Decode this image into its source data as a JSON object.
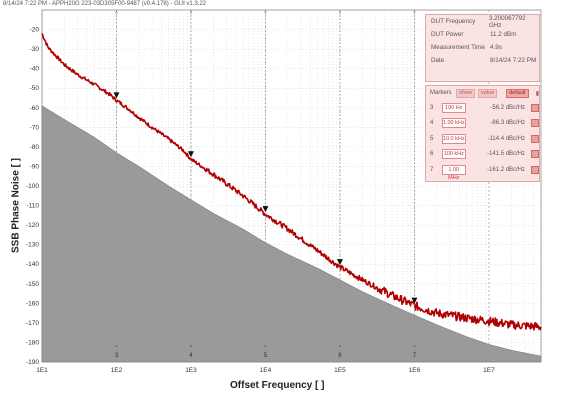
{
  "header": "8/14/24 7:22 PM - APPH20G 223-03D305F00-9487 (v0.4.178) - GUI v1.3.22",
  "info": [
    {
      "label": "DUT Frequency",
      "value": "3.200067792 GHz"
    },
    {
      "label": "DUT Power",
      "value": "11.2 dBm"
    },
    {
      "label": "Measurement Time",
      "value": "4.9s"
    },
    {
      "label": "Date",
      "value": "8/14/24 7:22 PM"
    }
  ],
  "markers_panel": {
    "title": "Markers",
    "show": "show",
    "value": "value",
    "default": "default",
    "rows": [
      {
        "id": "3",
        "freq": "100 Hz",
        "value": "-56.2 dBc/Hz"
      },
      {
        "id": "4",
        "freq": "1.00 kHz",
        "value": "-86.3 dBc/Hz"
      },
      {
        "id": "5",
        "freq": "10.0 kHz",
        "value": "-114.4 dBc/Hz"
      },
      {
        "id": "6",
        "freq": "100 kHz",
        "value": "-141.5 dBc/Hz"
      },
      {
        "id": "7",
        "freq": "1.00 MHz",
        "value": "-161.2 dBc/Hz"
      }
    ]
  },
  "chart_data": {
    "type": "line",
    "xlabel": "Offset Frequency [ ]",
    "ylabel": "SSB Phase Noise [ ]",
    "xscale": "log",
    "xlim": [
      10,
      50000000
    ],
    "ylim": [
      -190,
      -10
    ],
    "x_ticks": [
      "1E1",
      "1E2",
      "1E3",
      "1E4",
      "1E5",
      "1E6",
      "1E7"
    ],
    "y_ticks": [
      -20,
      -30,
      -40,
      -50,
      -60,
      -70,
      -80,
      -90,
      -100,
      -110,
      -120,
      -130,
      -140,
      -150,
      -160,
      -170,
      -180,
      -190
    ],
    "grid": true,
    "colors": {
      "measured": "#b00000",
      "floor": "#9a9a9a",
      "marker": "#111111"
    },
    "series": [
      {
        "kind": "measured",
        "x": [
          10,
          12,
          15,
          20,
          30,
          50,
          80,
          100,
          150,
          200,
          300,
          500,
          800,
          1000,
          2000,
          5000,
          10000,
          20000,
          50000,
          100000,
          200000,
          500000,
          1000000,
          2000000,
          5000000,
          10000000,
          20000000,
          50000000
        ],
        "y": [
          -22,
          -29,
          -33,
          -38,
          -43,
          -48,
          -53,
          -56.2,
          -61,
          -65,
          -70,
          -76,
          -82,
          -86.3,
          -94,
          -105,
          -114.4,
          -122,
          -133,
          -141.5,
          -148,
          -156,
          -161.2,
          -165,
          -167.5,
          -169,
          -171,
          -172
        ]
      },
      {
        "kind": "floor",
        "x": [
          10,
          20,
          50,
          100,
          200,
          500,
          1000,
          2000,
          5000,
          10000,
          20000,
          50000,
          100000,
          200000,
          500000,
          1000000,
          2000000,
          5000000,
          10000000,
          20000000,
          50000000
        ],
        "y": [
          -59,
          -66,
          -75,
          -83,
          -90,
          -100,
          -107,
          -114,
          -122,
          -129,
          -135,
          -142,
          -148,
          -154,
          -161,
          -166,
          -171,
          -177,
          -181,
          -184,
          -187
        ]
      }
    ],
    "markers": [
      {
        "id": "3",
        "x": 100,
        "y": -56.2
      },
      {
        "id": "4",
        "x": 1000,
        "y": -86.3
      },
      {
        "id": "5",
        "x": 10000,
        "y": -114.4
      },
      {
        "id": "6",
        "x": 100000,
        "y": -141.5
      },
      {
        "id": "7",
        "x": 1000000,
        "y": -161.2
      }
    ]
  }
}
